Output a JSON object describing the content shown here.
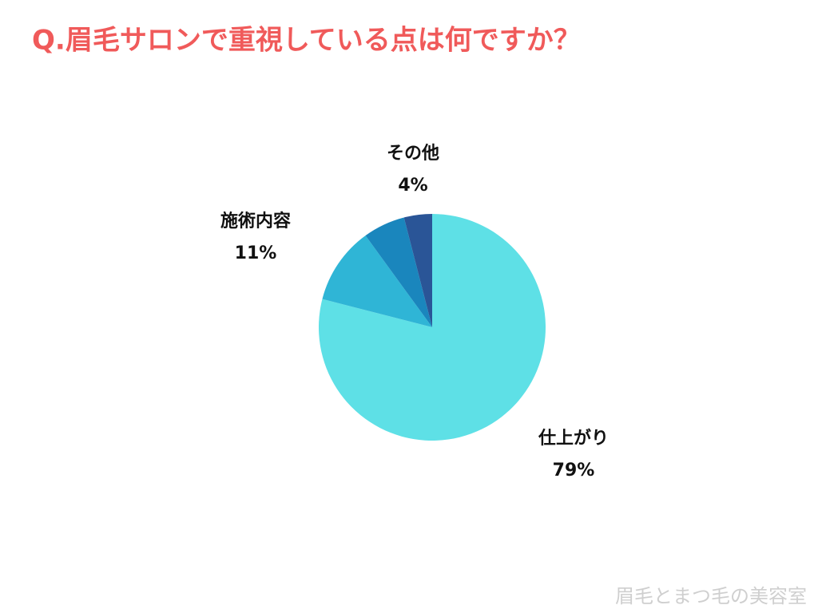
{
  "chart_data": {
    "type": "pie",
    "title": "Q.眉毛サロンで重視している点は何ですか？",
    "categories": [
      "仕上がり",
      "施術内容",
      null,
      "その他"
    ],
    "values": [
      79,
      11,
      6,
      4
    ],
    "value_labels": [
      "79%",
      "11%",
      null,
      "4%"
    ],
    "colors": [
      "#5ee0e6",
      "#2fb5d6",
      "#1a86bd",
      "#2a5597"
    ]
  },
  "watermark": "眉毛とまつ毛の美容室"
}
